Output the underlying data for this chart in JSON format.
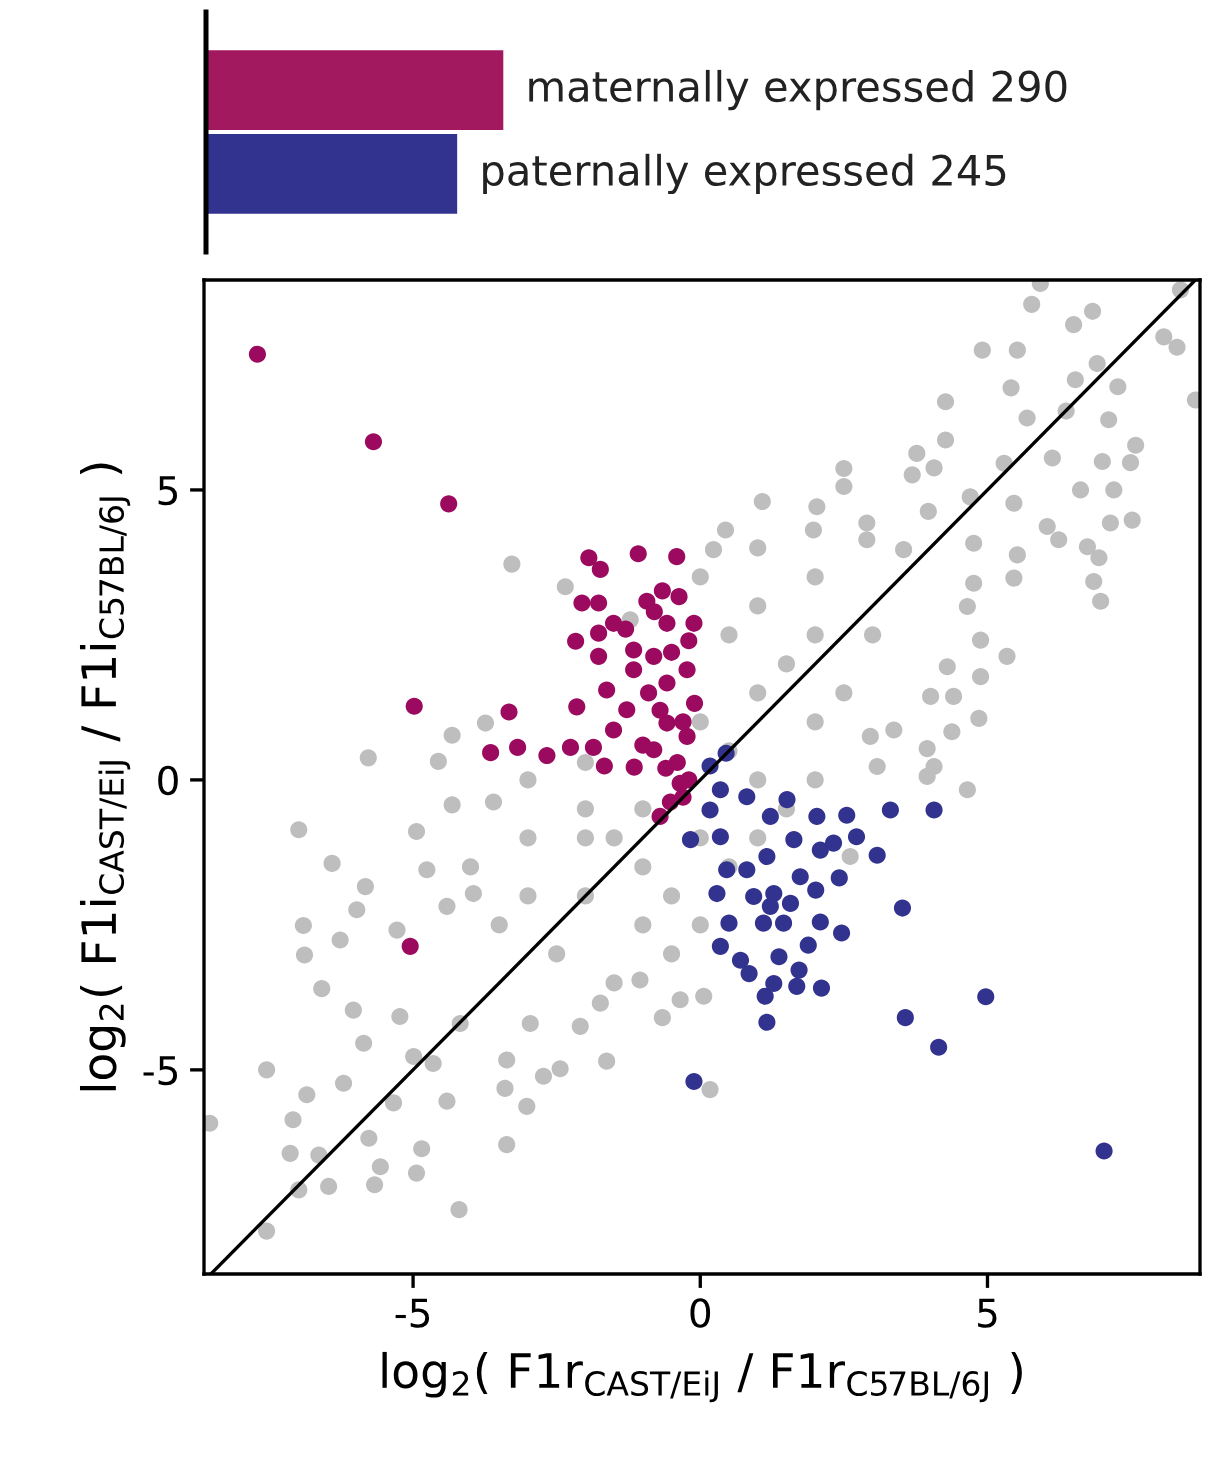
{
  "chart_data": [
    {
      "type": "bar",
      "orientation": "horizontal",
      "categories": [
        null,
        null
      ],
      "values": [
        290,
        245
      ],
      "colors": [
        "#a3195f",
        "#32338f"
      ],
      "value_labels": [
        "maternally expressed 290",
        "paternally expressed 245"
      ],
      "tick_labels": false
    },
    {
      "type": "scatter",
      "xlabel": "log$_{2}$( F1r$_{CAST/EiJ}$ / F1r$_{C57BL/6J}$ )",
      "ylabel": "log$_{2}$( F1i$_{CAST/EiJ}$ / F1i$_{C57BL/6J}$ )",
      "xlim": [
        -8.64,
        8.7
      ],
      "ylim": [
        -8.52,
        8.62
      ],
      "xticks": [
        -5,
        0,
        5
      ],
      "yticks": [
        -5,
        0,
        5
      ],
      "grid": false,
      "legend": false,
      "marker": "circle",
      "series": [
        {
          "color": "#bebebe",
          "x": [
            5.92,
            5.77,
            6.5,
            6.83,
            8.36,
            8.07,
            8.3,
            8.62,
            4.91,
            5.52,
            5.41,
            6.53,
            6.91,
            7.27,
            6.37,
            5.69,
            7.11,
            4.27,
            7.58,
            7.0,
            7.49,
            6.13,
            5.29,
            4.27,
            3.77,
            4.07,
            2.5,
            2.5,
            3.69,
            6.62,
            7.2,
            5.46,
            4.7,
            3.97,
            1.08,
            2.03,
            2.9,
            0.44,
            1.97,
            6.04,
            7.14,
            7.52,
            6.24,
            6.74,
            6.94,
            6.85,
            6.97,
            4.76,
            5.52,
            5.46,
            4.76,
            4.65,
            3.54,
            2.9,
            0.23,
            4.88,
            5.34,
            4.88,
            4.3,
            4.01,
            4.41,
            4.85,
            4.38,
            3.95,
            3.37,
            3.08,
            2.96,
            4.07,
            4.65,
            3.95,
            2.61,
            0.17,
            0.06,
            -2,
            -1,
            0,
            1,
            0,
            1,
            2,
            2,
            1,
            0,
            0.5,
            1.5,
            2.5,
            3,
            2,
            1,
            -1,
            -2,
            -3,
            -2.5,
            -1.5,
            -0.5,
            0,
            -1,
            -2,
            -1.5,
            0.5,
            -3,
            -3.5,
            -4,
            -2,
            -3,
            1.5,
            2,
            0.5,
            -0.5,
            1,
            -3.28,
            -2.35,
            -1.22,
            -4.32,
            -3.74,
            -5.78,
            -4.56,
            -6.99,
            -4.94,
            -4.32,
            -3.6,
            -6.41,
            -5.83,
            -6.91,
            -6.89,
            -6.27,
            -6.59,
            -5.98,
            -5.28,
            -4.76,
            -4.41,
            -3.95,
            -6.04,
            -7.55,
            -8.54,
            -6.85,
            -6.21,
            -5.86,
            -7.09,
            -7.14,
            -6.64,
            -6.99,
            -7.55,
            -6.47,
            -5.67,
            -5.57,
            -4.94,
            -4.85,
            -5.77,
            -5.34,
            -4.41,
            -4.2,
            -4.99,
            -4.65,
            -5.23,
            -4.18,
            -3.37,
            -3.4,
            -3.02,
            -2.73,
            -2.44,
            -1.63,
            -3.37,
            -2.09,
            -1.74,
            -1.05,
            -0.66,
            -0.35,
            -2.96
          ],
          "values": [
            8.56,
            8.2,
            7.85,
            8.08,
            8.45,
            7.64,
            7.46,
            6.55,
            7.41,
            7.41,
            6.76,
            6.9,
            7.18,
            6.78,
            6.36,
            6.24,
            6.21,
            6.52,
            5.77,
            5.49,
            5.47,
            5.55,
            5.46,
            5.86,
            5.63,
            5.38,
            5.37,
            5.06,
            5.26,
            5.0,
            5.0,
            4.77,
            4.88,
            4.63,
            4.8,
            4.71,
            4.43,
            4.31,
            4.31,
            4.37,
            4.43,
            4.48,
            4.14,
            4.02,
            3.83,
            3.42,
            3.08,
            4.08,
            3.88,
            3.48,
            3.39,
            2.99,
            3.97,
            4.14,
            3.97,
            2.41,
            2.13,
            1.78,
            1.95,
            1.44,
            1.44,
            1.06,
            0.83,
            0.54,
            0.86,
            0.23,
            0.75,
            0.23,
            -0.17,
            0.06,
            -1.32,
            -5.34,
            -3.73,
            -1,
            -1.5,
            -1,
            0,
            1,
            1.5,
            1,
            2.5,
            3,
            3.5,
            2.5,
            2,
            1.5,
            2.5,
            3.5,
            4,
            -2.5,
            -2,
            -2,
            -3,
            -3.5,
            -3,
            -2.5,
            -0.5,
            -0.5,
            -1,
            -1.5,
            -1,
            -2.5,
            -1.5,
            0.3,
            0,
            -0.5,
            0,
            0.5,
            -2,
            -1,
            3.72,
            3.33,
            2.76,
            0.77,
            0.98,
            0.38,
            0.32,
            -0.86,
            -0.89,
            -0.43,
            -0.38,
            -1.44,
            -1.84,
            -2.51,
            -3.02,
            -2.76,
            -3.6,
            -2.24,
            -2.59,
            -1.55,
            -2.18,
            -1.96,
            -3.97,
            -5.0,
            -5.92,
            -5.43,
            -5.23,
            -4.54,
            -5.86,
            -6.44,
            -6.47,
            -7.07,
            -7.78,
            -7.01,
            -6.98,
            -6.67,
            -6.78,
            -6.36,
            -6.18,
            -5.57,
            -5.54,
            -7.41,
            -4.77,
            -4.89,
            -4.08,
            -4.2,
            -4.83,
            -5.32,
            -5.63,
            -5.11,
            -4.98,
            -4.85,
            -6.29,
            -4.25,
            -3.85,
            -3.45,
            -4.1,
            -3.79,
            -4.2
          ]
        },
        {
          "color": "#9b0a5e",
          "x": [
            -7.71,
            -5.69,
            -4.38,
            -4.98,
            -5.05,
            -1.94,
            -1.74,
            -1.08,
            -0.41,
            -2.06,
            -1.77,
            -0.66,
            -0.37,
            -0.93,
            -1.51,
            -2.17,
            -1.77,
            -1.77,
            -3.33,
            -3.65,
            -3.18,
            -2.67,
            -2.26,
            -1.86,
            -1.67,
            -1.15,
            -2.15,
            -1.63,
            -1.28,
            -0.58,
            -0.23,
            -0.23,
            -0.58,
            -0.81,
            -1.16,
            -0.11,
            -0.58,
            -1.16,
            -1.51,
            -0.81,
            -0.1,
            -0.7,
            -0.52,
            -0.35,
            -0.4,
            -0.2,
            -0.6,
            -0.3,
            -0.9,
            -0.5,
            -1.0,
            -0.3,
            -0.7,
            -1.3,
            -0.2,
            -0.8
          ],
          "values": [
            7.34,
            5.83,
            4.76,
            1.27,
            -2.87,
            3.83,
            3.63,
            3.9,
            3.85,
            3.05,
            3.05,
            3.26,
            3.16,
            3.08,
            2.7,
            2.39,
            2.53,
            2.13,
            1.17,
            0.47,
            0.56,
            0.42,
            0.56,
            0.56,
            0.24,
            0.22,
            1.26,
            1.55,
            1.21,
            0.98,
            0.75,
            1.9,
            1.67,
            2.13,
            2.24,
            2.7,
            2.7,
            1.9,
            0.86,
            0.52,
            1.32,
            -0.63,
            -0.38,
            -0.06,
            0.3,
            0.0,
            0.2,
            1.0,
            1.5,
            2.2,
            0.6,
            -0.3,
            1.2,
            2.6,
            2.4,
            2.9
          ]
        },
        {
          "color": "#32338f",
          "x": [
            3.31,
            4.07,
            3.08,
            2.72,
            3.52,
            2.46,
            2.09,
            2.42,
            4.97,
            3.57,
            4.15,
            7.03,
            1.16,
            1.13,
            1.68,
            2.11,
            1.72,
            1.37,
            1.88,
            0.85,
            0.7,
            1.28,
            0.35,
            0.5,
            1.1,
            1.45,
            1.22,
            1.57,
            0.29,
            0.93,
            1.28,
            2.01,
            1.74,
            0.81,
            1.16,
            2.09,
            1.63,
            2.03,
            2.55,
            1.22,
            1.51,
            0.81,
            0.35,
            0.35,
            0.46,
            0.17,
            2.32,
            -0.11,
            -0.17,
            0.45,
            0.17
          ],
          "values": [
            -0.52,
            -0.52,
            -1.3,
            -0.98,
            -2.21,
            -2.64,
            -2.45,
            -1.69,
            -3.74,
            -4.1,
            -4.61,
            -6.4,
            -4.18,
            -3.73,
            -3.56,
            -3.59,
            -3.28,
            -3.05,
            -2.85,
            -3.34,
            -3.11,
            -3.51,
            -2.87,
            -2.47,
            -2.47,
            -2.47,
            -2.18,
            -2.13,
            -1.96,
            -2.01,
            -1.96,
            -1.9,
            -1.67,
            -1.55,
            -1.32,
            -1.21,
            -1.03,
            -0.63,
            -0.61,
            -0.63,
            -0.34,
            -0.29,
            -0.17,
            -0.98,
            -1.55,
            -0.52,
            -1.09,
            -5.2,
            -1.03,
            0.46,
            0.24
          ]
        },
        {
          "type": "line",
          "color": "#000000",
          "marker": "none",
          "x": [
            -8.52,
            8.62
          ],
          "values": [
            -8.52,
            8.62
          ]
        }
      ]
    }
  ]
}
